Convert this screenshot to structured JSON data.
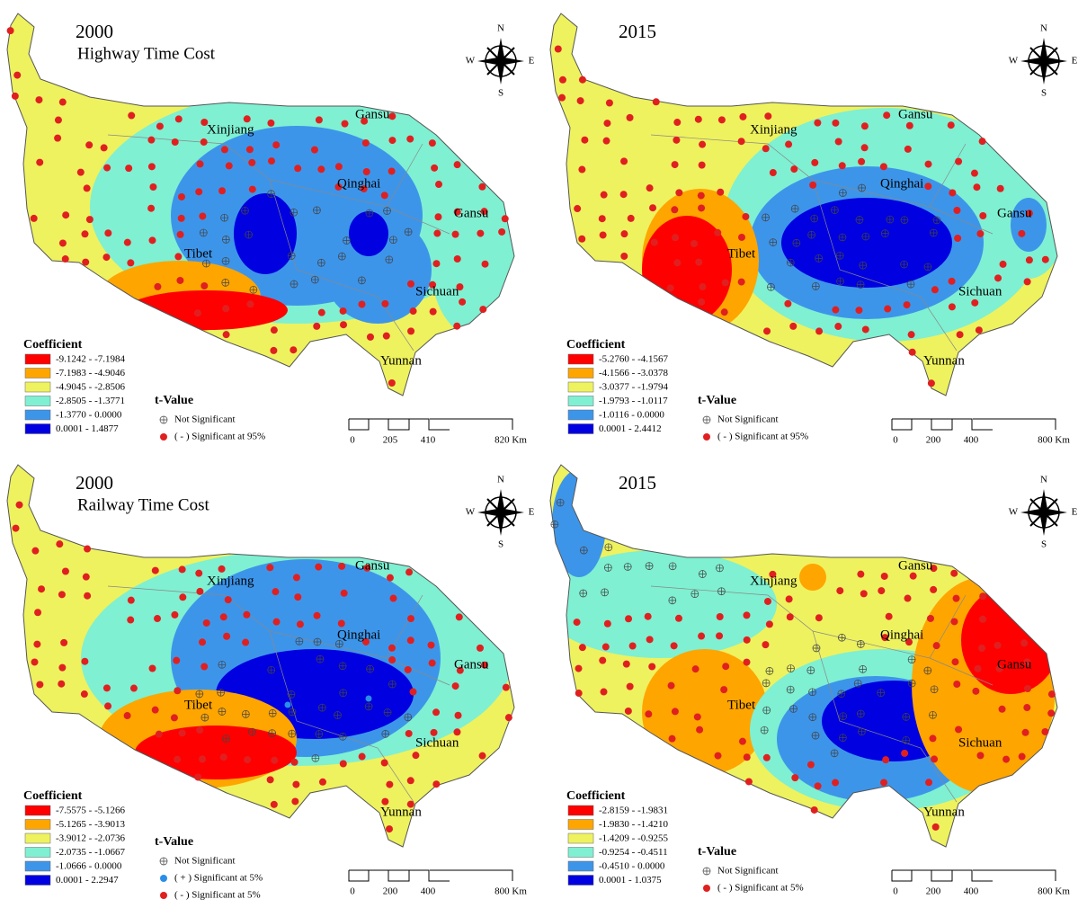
{
  "panels": [
    {
      "title": "2000",
      "subtitle": "Highway Time Cost",
      "regions": [
        "Xinjiang",
        "Gansu",
        "Qinghai",
        "Gansu",
        "Tibet",
        "Sichuan",
        "Yunnan"
      ],
      "compass": [
        "N",
        "W",
        "E",
        "S"
      ],
      "legend": {
        "title": "Coefficient",
        "items": [
          {
            "label": "-9.1242 - -7.1984",
            "color": "#ff0000"
          },
          {
            "label": "-7.1983 - -4.9046",
            "color": "#ffa500"
          },
          {
            "label": "-4.9045 - -2.8506",
            "color": "#eef25e"
          },
          {
            "label": "-2.8505 - -1.3771",
            "color": "#7ff0d2"
          },
          {
            "label": "-1.3770 - 0.0000",
            "color": "#3d95ea"
          },
          {
            "label": "0.0001 - 1.4877",
            "color": "#0000e0"
          }
        ]
      },
      "tvalue": {
        "title": "t-Value",
        "items": [
          {
            "label": "Not Significant",
            "marker": "cross"
          },
          {
            "label": "( - ) Significant at 95%",
            "marker": "dot",
            "color": "#e02020"
          }
        ]
      },
      "scale": [
        "0",
        "205",
        "410",
        "820 Km"
      ]
    },
    {
      "title": "2015",
      "regions": [
        "Xinjiang",
        "Gansu",
        "Qinghai",
        "Gansu",
        "Tibet",
        "Sichuan",
        "Yunnan"
      ],
      "compass": [
        "N",
        "W",
        "E",
        "S"
      ],
      "legend": {
        "title": "Coefficient",
        "items": [
          {
            "label": "-5.2760 - -4.1567",
            "color": "#ff0000"
          },
          {
            "label": "-4.1566 - -3.0378",
            "color": "#ffa500"
          },
          {
            "label": "-3.0377 - -1.9794",
            "color": "#eef25e"
          },
          {
            "label": "-1.9793 - -1.0117",
            "color": "#7ff0d2"
          },
          {
            "label": "-1.0116 - 0.0000",
            "color": "#3d95ea"
          },
          {
            "label": "0.0001 - 2.4412",
            "color": "#0000e0"
          }
        ]
      },
      "tvalue": {
        "title": "t-Value",
        "items": [
          {
            "label": "Not Significant",
            "marker": "cross"
          },
          {
            "label": "( - ) Significant at 95%",
            "marker": "dot",
            "color": "#e02020"
          }
        ]
      },
      "scale": [
        "0",
        "200",
        "400",
        "800 Km"
      ]
    },
    {
      "title": "2000",
      "subtitle": "Railway Time Cost",
      "regions": [
        "Xinjiang",
        "Gansu",
        "Qinghai",
        "Gansu",
        "Tibet",
        "Sichuan",
        "Yunnan"
      ],
      "compass": [
        "N",
        "W",
        "E",
        "S"
      ],
      "legend": {
        "title": "Coefficient",
        "items": [
          {
            "label": "-7.5575 - -5.1266",
            "color": "#ff0000"
          },
          {
            "label": "-5.1265 - -3.9013",
            "color": "#ffa500"
          },
          {
            "label": "-3.9012 - -2.0736",
            "color": "#eef25e"
          },
          {
            "label": "-2.0735 - -1.0667",
            "color": "#7ff0d2"
          },
          {
            "label": "-1.0666 - 0.0000",
            "color": "#3d95ea"
          },
          {
            "label": "0.0001 - 2.2947",
            "color": "#0000e0"
          }
        ]
      },
      "tvalue": {
        "title": "t-Value",
        "items": [
          {
            "label": "Not Significant",
            "marker": "cross"
          },
          {
            "label": "( + ) Significant at 5%",
            "marker": "dot",
            "color": "#2a8ee8"
          },
          {
            "label": "( - ) Significant at 5%",
            "marker": "dot",
            "color": "#e02020"
          }
        ]
      },
      "scale": [
        "0",
        "200",
        "400",
        "800 Km"
      ]
    },
    {
      "title": "2015",
      "regions": [
        "Xinjiang",
        "Gansu",
        "Qinghai",
        "Gansu",
        "Tibet",
        "Sichuan",
        "Yunnan"
      ],
      "compass": [
        "N",
        "W",
        "E",
        "S"
      ],
      "legend": {
        "title": "Coefficient",
        "items": [
          {
            "label": "-2.8159 - -1.9831",
            "color": "#ff0000"
          },
          {
            "label": "-1.9830 - -1.4210",
            "color": "#ffa500"
          },
          {
            "label": "-1.4209 - -0.9255",
            "color": "#eef25e"
          },
          {
            "label": "-0.9254 - -0.4511",
            "color": "#7ff0d2"
          },
          {
            "label": "-0.4510 - 0.0000",
            "color": "#3d95ea"
          },
          {
            "label": "0.0001 - 1.0375",
            "color": "#0000e0"
          }
        ]
      },
      "tvalue": {
        "title": "t-Value",
        "items": [
          {
            "label": "Not Significant",
            "marker": "cross"
          },
          {
            "label": "( - ) Significant at 5%",
            "marker": "dot",
            "color": "#e02020"
          }
        ]
      },
      "scale": [
        "0",
        "200",
        "400",
        "800 Km"
      ]
    }
  ]
}
